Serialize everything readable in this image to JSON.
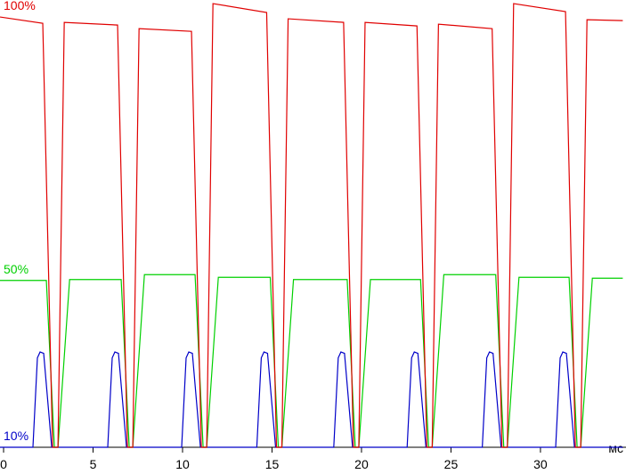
{
  "chart_data": {
    "type": "line",
    "x_label": "мс",
    "xlim": [
      -0.2,
      34.78
    ],
    "xticks": [
      0,
      5,
      10,
      15,
      20,
      25,
      30
    ],
    "ylim": [
      0,
      100
    ],
    "series": [
      {
        "name": "100%",
        "color": "#e00000",
        "x": [
          -0.2,
          2.19,
          2.74,
          3.04,
          3.39,
          6.37,
          6.92,
          7.22,
          7.57,
          10.5,
          11.05,
          11.35,
          11.7,
          14.7,
          15.25,
          15.55,
          15.9,
          19.0,
          19.55,
          19.85,
          20.2,
          23.1,
          23.65,
          23.95,
          24.3,
          27.3,
          27.85,
          28.15,
          28.5,
          31.4,
          31.95,
          32.25,
          32.6,
          34.6
        ],
        "values": [
          96.2,
          94.8,
          0,
          0,
          95.0,
          94.4,
          0,
          0,
          93.6,
          93.0,
          0,
          0,
          99.2,
          97.2,
          0,
          0,
          95.8,
          95.0,
          0,
          0,
          95.0,
          94.2,
          0,
          0,
          94.6,
          93.6,
          0,
          0,
          99.2,
          97.4,
          0,
          0,
          95.6,
          95.4
        ]
      },
      {
        "name": "50%",
        "color": "#00d000",
        "x": [
          -0.2,
          2.39,
          2.84,
          3.04,
          3.69,
          6.57,
          7.02,
          7.22,
          7.87,
          10.7,
          11.15,
          11.35,
          12.0,
          14.9,
          15.35,
          15.55,
          16.2,
          19.2,
          19.65,
          19.85,
          20.5,
          23.3,
          23.75,
          23.95,
          24.6,
          27.5,
          27.95,
          28.15,
          28.8,
          31.6,
          32.05,
          32.25,
          32.9,
          34.6
        ],
        "values": [
          37.3,
          37.3,
          0,
          0,
          37.5,
          37.5,
          0,
          0,
          38.6,
          38.6,
          0,
          0,
          38.0,
          38.0,
          0,
          0,
          37.5,
          37.5,
          0,
          0,
          37.5,
          37.5,
          0,
          0,
          38.6,
          38.6,
          0,
          0,
          38.0,
          38.0,
          0,
          0,
          37.8,
          37.8
        ]
      },
      {
        "name": "10%",
        "color": "#0000c8",
        "x": [
          -0.2,
          1.64,
          1.89,
          2.04,
          2.24,
          2.69,
          5.82,
          6.07,
          6.22,
          6.42,
          6.87,
          9.95,
          10.2,
          10.35,
          10.55,
          11.0,
          14.15,
          14.4,
          14.55,
          14.75,
          15.2,
          18.45,
          18.7,
          18.85,
          19.05,
          19.5,
          22.55,
          22.8,
          22.95,
          23.15,
          23.6,
          26.75,
          27.0,
          27.15,
          27.35,
          27.8,
          30.85,
          31.1,
          31.25,
          31.45,
          31.9,
          34.6
        ],
        "values": [
          0,
          0,
          20,
          21.3,
          21,
          0,
          0,
          20,
          21.3,
          21,
          0,
          0,
          20,
          21.3,
          21,
          0,
          0,
          20,
          21.3,
          21,
          0,
          0,
          20,
          21.3,
          21,
          0,
          0,
          20,
          21.3,
          21,
          0,
          0,
          20,
          21.3,
          21,
          0,
          0,
          20,
          21.3,
          21,
          0,
          0
        ]
      }
    ]
  }
}
